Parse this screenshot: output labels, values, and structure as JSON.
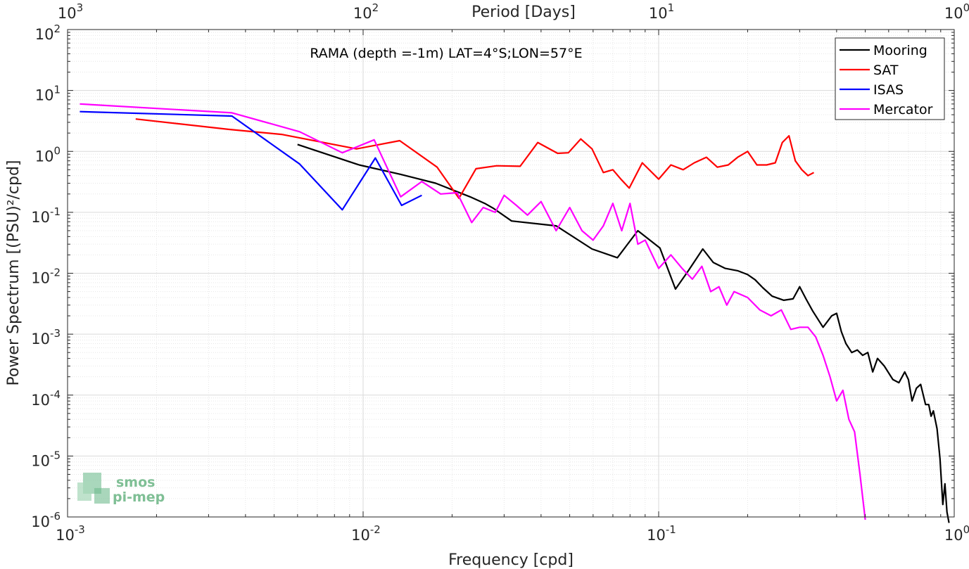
{
  "chart_data": {
    "type": "line",
    "title": "RAMA (depth =-1m) LAT=4°S;LON=57°E",
    "xlabel": "Frequency [cpd]",
    "ylabel": "Power Spectrum [(PSU)²/cpd]",
    "x2label": "Period [Days]",
    "xscale": "log",
    "yscale": "log",
    "xlim": [
      0.001,
      1
    ],
    "ylim": [
      1e-06,
      100
    ],
    "x_ticks": [
      {
        "base": "10",
        "exp": "-3"
      },
      {
        "base": "10",
        "exp": "-2"
      },
      {
        "base": "10",
        "exp": "-1"
      },
      {
        "base": "10",
        "exp": "0"
      }
    ],
    "x2_ticks": [
      {
        "base": "10",
        "exp": "3"
      },
      {
        "base": "10",
        "exp": "2"
      },
      {
        "base": "10",
        "exp": "1"
      },
      {
        "base": "10",
        "exp": "0"
      }
    ],
    "y_ticks": [
      {
        "base": "10",
        "exp": "-6"
      },
      {
        "base": "10",
        "exp": "-5"
      },
      {
        "base": "10",
        "exp": "-4"
      },
      {
        "base": "10",
        "exp": "-3"
      },
      {
        "base": "10",
        "exp": "-2"
      },
      {
        "base": "10",
        "exp": "-1"
      },
      {
        "base": "10",
        "exp": "0"
      },
      {
        "base": "10",
        "exp": "1"
      },
      {
        "base": "10",
        "exp": "2"
      }
    ],
    "grid": true,
    "legend_position": "top-right",
    "logo": {
      "line1": "smos",
      "line2": "pi-mep"
    },
    "series": [
      {
        "name": "Mooring",
        "color": "#000000",
        "points": [
          [
            0.006,
            1.3
          ],
          [
            0.0097,
            0.6
          ],
          [
            0.0134,
            0.42
          ],
          [
            0.0176,
            0.3
          ],
          [
            0.023,
            0.18
          ],
          [
            0.0258,
            0.14
          ],
          [
            0.0277,
            0.115
          ],
          [
            0.0318,
            0.072
          ],
          [
            0.045,
            0.06
          ],
          [
            0.0595,
            0.025
          ],
          [
            0.0725,
            0.018
          ],
          [
            0.085,
            0.05
          ],
          [
            0.101,
            0.026
          ],
          [
            0.114,
            0.0055
          ],
          [
            0.126,
            0.011
          ],
          [
            0.141,
            0.025
          ],
          [
            0.153,
            0.015
          ],
          [
            0.168,
            0.012
          ],
          [
            0.185,
            0.011
          ],
          [
            0.2,
            0.0095
          ],
          [
            0.212,
            0.0078
          ],
          [
            0.225,
            0.0058
          ],
          [
            0.242,
            0.0042
          ],
          [
            0.265,
            0.0036
          ],
          [
            0.285,
            0.0038
          ],
          [
            0.3,
            0.006
          ],
          [
            0.315,
            0.0038
          ],
          [
            0.332,
            0.0024
          ],
          [
            0.36,
            0.0013
          ],
          [
            0.385,
            0.002
          ],
          [
            0.4,
            0.0022
          ],
          [
            0.415,
            0.0011
          ],
          [
            0.43,
            0.0007
          ],
          [
            0.45,
            0.0005
          ],
          [
            0.47,
            0.00055
          ],
          [
            0.49,
            0.00045
          ],
          [
            0.51,
            0.0005
          ],
          [
            0.53,
            0.00024
          ],
          [
            0.55,
            0.0004
          ],
          [
            0.58,
            0.0003
          ],
          [
            0.62,
            0.00018
          ],
          [
            0.65,
            0.00016
          ],
          [
            0.68,
            0.00024
          ],
          [
            0.7,
            0.00018
          ],
          [
            0.72,
            8e-05
          ],
          [
            0.745,
            0.00013
          ],
          [
            0.77,
            0.00015
          ],
          [
            0.8,
            7e-05
          ],
          [
            0.82,
            7e-05
          ],
          [
            0.835,
            4.5e-05
          ],
          [
            0.85,
            5.5e-05
          ],
          [
            0.875,
            2.8e-05
          ],
          [
            0.895,
            9e-06
          ],
          [
            0.915,
            1.6e-06
          ],
          [
            0.93,
            3.5e-06
          ],
          [
            0.945,
            1.2e-06
          ],
          [
            0.96,
            8e-07
          ]
        ]
      },
      {
        "name": "SAT",
        "color": "#ff0000",
        "points": [
          [
            0.0017,
            3.4
          ],
          [
            0.0035,
            2.3
          ],
          [
            0.0053,
            1.9
          ],
          [
            0.0095,
            1.1
          ],
          [
            0.0133,
            1.5
          ],
          [
            0.0178,
            0.55
          ],
          [
            0.0211,
            0.17
          ],
          [
            0.0241,
            0.52
          ],
          [
            0.0283,
            0.58
          ],
          [
            0.034,
            0.57
          ],
          [
            0.039,
            1.4
          ],
          [
            0.0455,
            0.93
          ],
          [
            0.0495,
            0.95
          ],
          [
            0.0545,
            1.6
          ],
          [
            0.0595,
            1.1
          ],
          [
            0.065,
            0.45
          ],
          [
            0.07,
            0.5
          ],
          [
            0.0745,
            0.35
          ],
          [
            0.0795,
            0.25
          ],
          [
            0.088,
            0.65
          ],
          [
            0.1,
            0.35
          ],
          [
            0.11,
            0.6
          ],
          [
            0.121,
            0.5
          ],
          [
            0.132,
            0.65
          ],
          [
            0.145,
            0.8
          ],
          [
            0.158,
            0.55
          ],
          [
            0.172,
            0.6
          ],
          [
            0.185,
            0.8
          ],
          [
            0.2,
            1.0
          ],
          [
            0.215,
            0.6
          ],
          [
            0.232,
            0.6
          ],
          [
            0.248,
            0.65
          ],
          [
            0.262,
            1.4
          ],
          [
            0.276,
            1.8
          ],
          [
            0.29,
            0.7
          ],
          [
            0.305,
            0.5
          ],
          [
            0.32,
            0.4
          ],
          [
            0.335,
            0.45
          ]
        ]
      },
      {
        "name": "ISAS",
        "color": "#0000ff",
        "points": [
          [
            0.0011,
            4.5
          ],
          [
            0.0036,
            3.8
          ],
          [
            0.0061,
            0.62
          ],
          [
            0.0085,
            0.11
          ],
          [
            0.011,
            0.78
          ],
          [
            0.0135,
            0.13
          ],
          [
            0.0158,
            0.19
          ]
        ]
      },
      {
        "name": "Mercator",
        "color": "#ff00ff",
        "points": [
          [
            0.0011,
            6.0
          ],
          [
            0.0036,
            4.3
          ],
          [
            0.0061,
            2.1
          ],
          [
            0.0085,
            0.95
          ],
          [
            0.0109,
            1.55
          ],
          [
            0.0134,
            0.18
          ],
          [
            0.0158,
            0.32
          ],
          [
            0.0183,
            0.2
          ],
          [
            0.0208,
            0.21
          ],
          [
            0.0233,
            0.068
          ],
          [
            0.0255,
            0.12
          ],
          [
            0.028,
            0.1
          ],
          [
            0.03,
            0.19
          ],
          [
            0.033,
            0.13
          ],
          [
            0.036,
            0.09
          ],
          [
            0.04,
            0.15
          ],
          [
            0.045,
            0.05
          ],
          [
            0.05,
            0.12
          ],
          [
            0.055,
            0.05
          ],
          [
            0.06,
            0.035
          ],
          [
            0.065,
            0.06
          ],
          [
            0.07,
            0.14
          ],
          [
            0.075,
            0.05
          ],
          [
            0.08,
            0.14
          ],
          [
            0.085,
            0.03
          ],
          [
            0.09,
            0.035
          ],
          [
            0.1,
            0.012
          ],
          [
            0.11,
            0.02
          ],
          [
            0.12,
            0.012
          ],
          [
            0.13,
            0.008
          ],
          [
            0.14,
            0.013
          ],
          [
            0.15,
            0.005
          ],
          [
            0.16,
            0.006
          ],
          [
            0.17,
            0.003
          ],
          [
            0.18,
            0.005
          ],
          [
            0.2,
            0.004
          ],
          [
            0.22,
            0.0025
          ],
          [
            0.24,
            0.002
          ],
          [
            0.26,
            0.0025
          ],
          [
            0.28,
            0.0012
          ],
          [
            0.3,
            0.0013
          ],
          [
            0.32,
            0.0013
          ],
          [
            0.34,
            0.0009
          ],
          [
            0.36,
            0.00045
          ],
          [
            0.38,
            0.0002
          ],
          [
            0.4,
            8e-05
          ],
          [
            0.42,
            0.00012
          ],
          [
            0.44,
            4e-05
          ],
          [
            0.46,
            2.5e-05
          ],
          [
            0.48,
            5e-06
          ],
          [
            0.5,
            9e-07
          ]
        ]
      }
    ]
  }
}
